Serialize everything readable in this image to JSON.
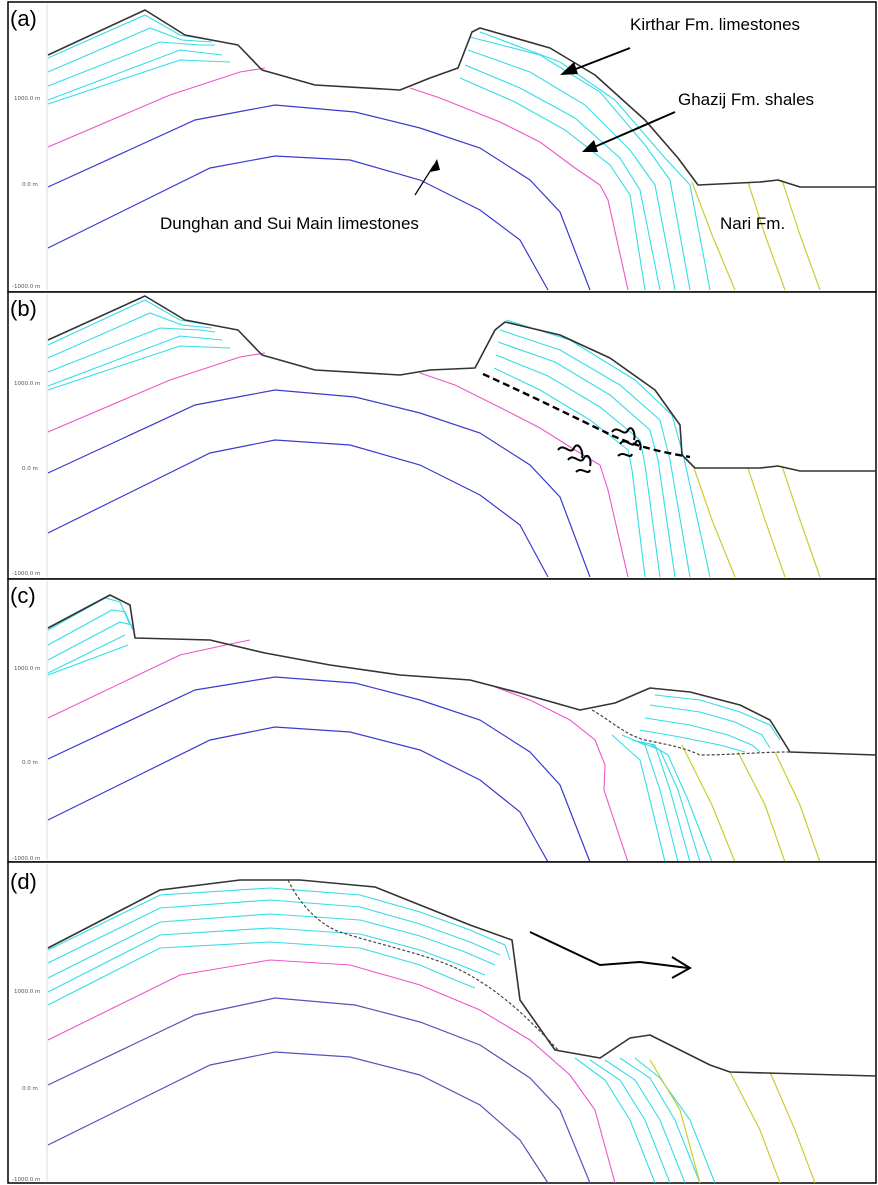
{
  "panels": [
    {
      "label": "(a)",
      "ticks": [
        "1000.0 m",
        "0.0 m",
        "-1000.0 m"
      ]
    },
    {
      "label": "(b)",
      "ticks": [
        "1000.0 m",
        "0.0 m",
        "-1000.0 m"
      ]
    },
    {
      "label": "(c)",
      "ticks": [
        "1000.0 m",
        "0.0 m",
        "-1000.0 m"
      ]
    },
    {
      "label": "(d)",
      "ticks": [
        "1000.0 m",
        "0.0 m",
        "-1000.0 m"
      ]
    }
  ],
  "annotations": {
    "kirthar": "Kirthar Fm. limestones",
    "ghazij": "Ghazij Fm. shales",
    "dunghan": "Dunghan and Sui Main limestones",
    "nari": "Nari Fm."
  },
  "colors": {
    "kirthar_limestone": "#33dde6",
    "ghazij_shale": "#ee55cc",
    "dunghan_limestone": "#3a3ad0",
    "nari_formation": "#cccc33",
    "topography": "#333333"
  }
}
